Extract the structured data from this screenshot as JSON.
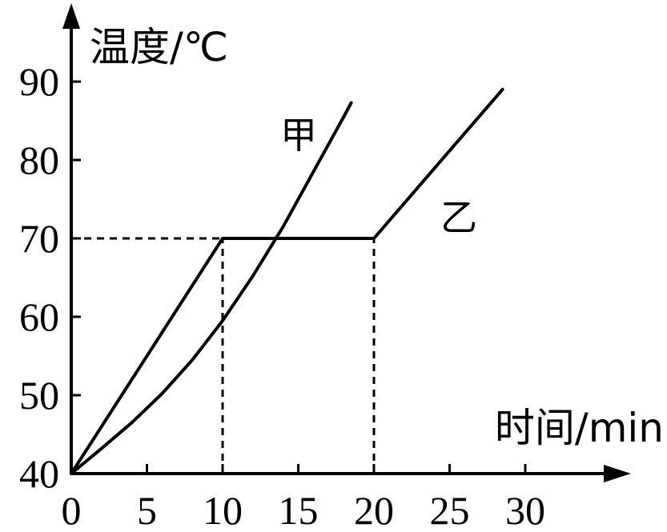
{
  "chart_data": {
    "type": "line",
    "ylabel": "温度/℃",
    "xlabel": "时间/min",
    "x_ticks": [
      "0",
      "5",
      "10",
      "15",
      "20",
      "25",
      "30"
    ],
    "y_ticks": [
      "40",
      "50",
      "60",
      "70",
      "80",
      "90"
    ],
    "xlim": [
      0,
      30
    ],
    "ylim": [
      40,
      90
    ],
    "grid": false,
    "series": [
      {
        "name": "甲",
        "x": [
          0,
          2,
          4,
          6,
          8,
          10,
          12,
          14,
          16,
          18,
          18.5
        ],
        "y": [
          40,
          43.2,
          46.5,
          50.2,
          54.5,
          59.5,
          65.2,
          71.5,
          78.5,
          85.5,
          87.3
        ]
      },
      {
        "name": "乙",
        "x": [
          0,
          10,
          20,
          28.5
        ],
        "y": [
          40,
          70,
          70,
          89
        ]
      }
    ],
    "reference_lines": [
      {
        "kind": "horizontal",
        "y": 70,
        "x_from": 0,
        "x_to": 10
      },
      {
        "kind": "vertical",
        "x": 10,
        "y_from": 40,
        "y_to": 70
      },
      {
        "kind": "vertical",
        "x": 20,
        "y_from": 40,
        "y_to": 70
      }
    ]
  }
}
